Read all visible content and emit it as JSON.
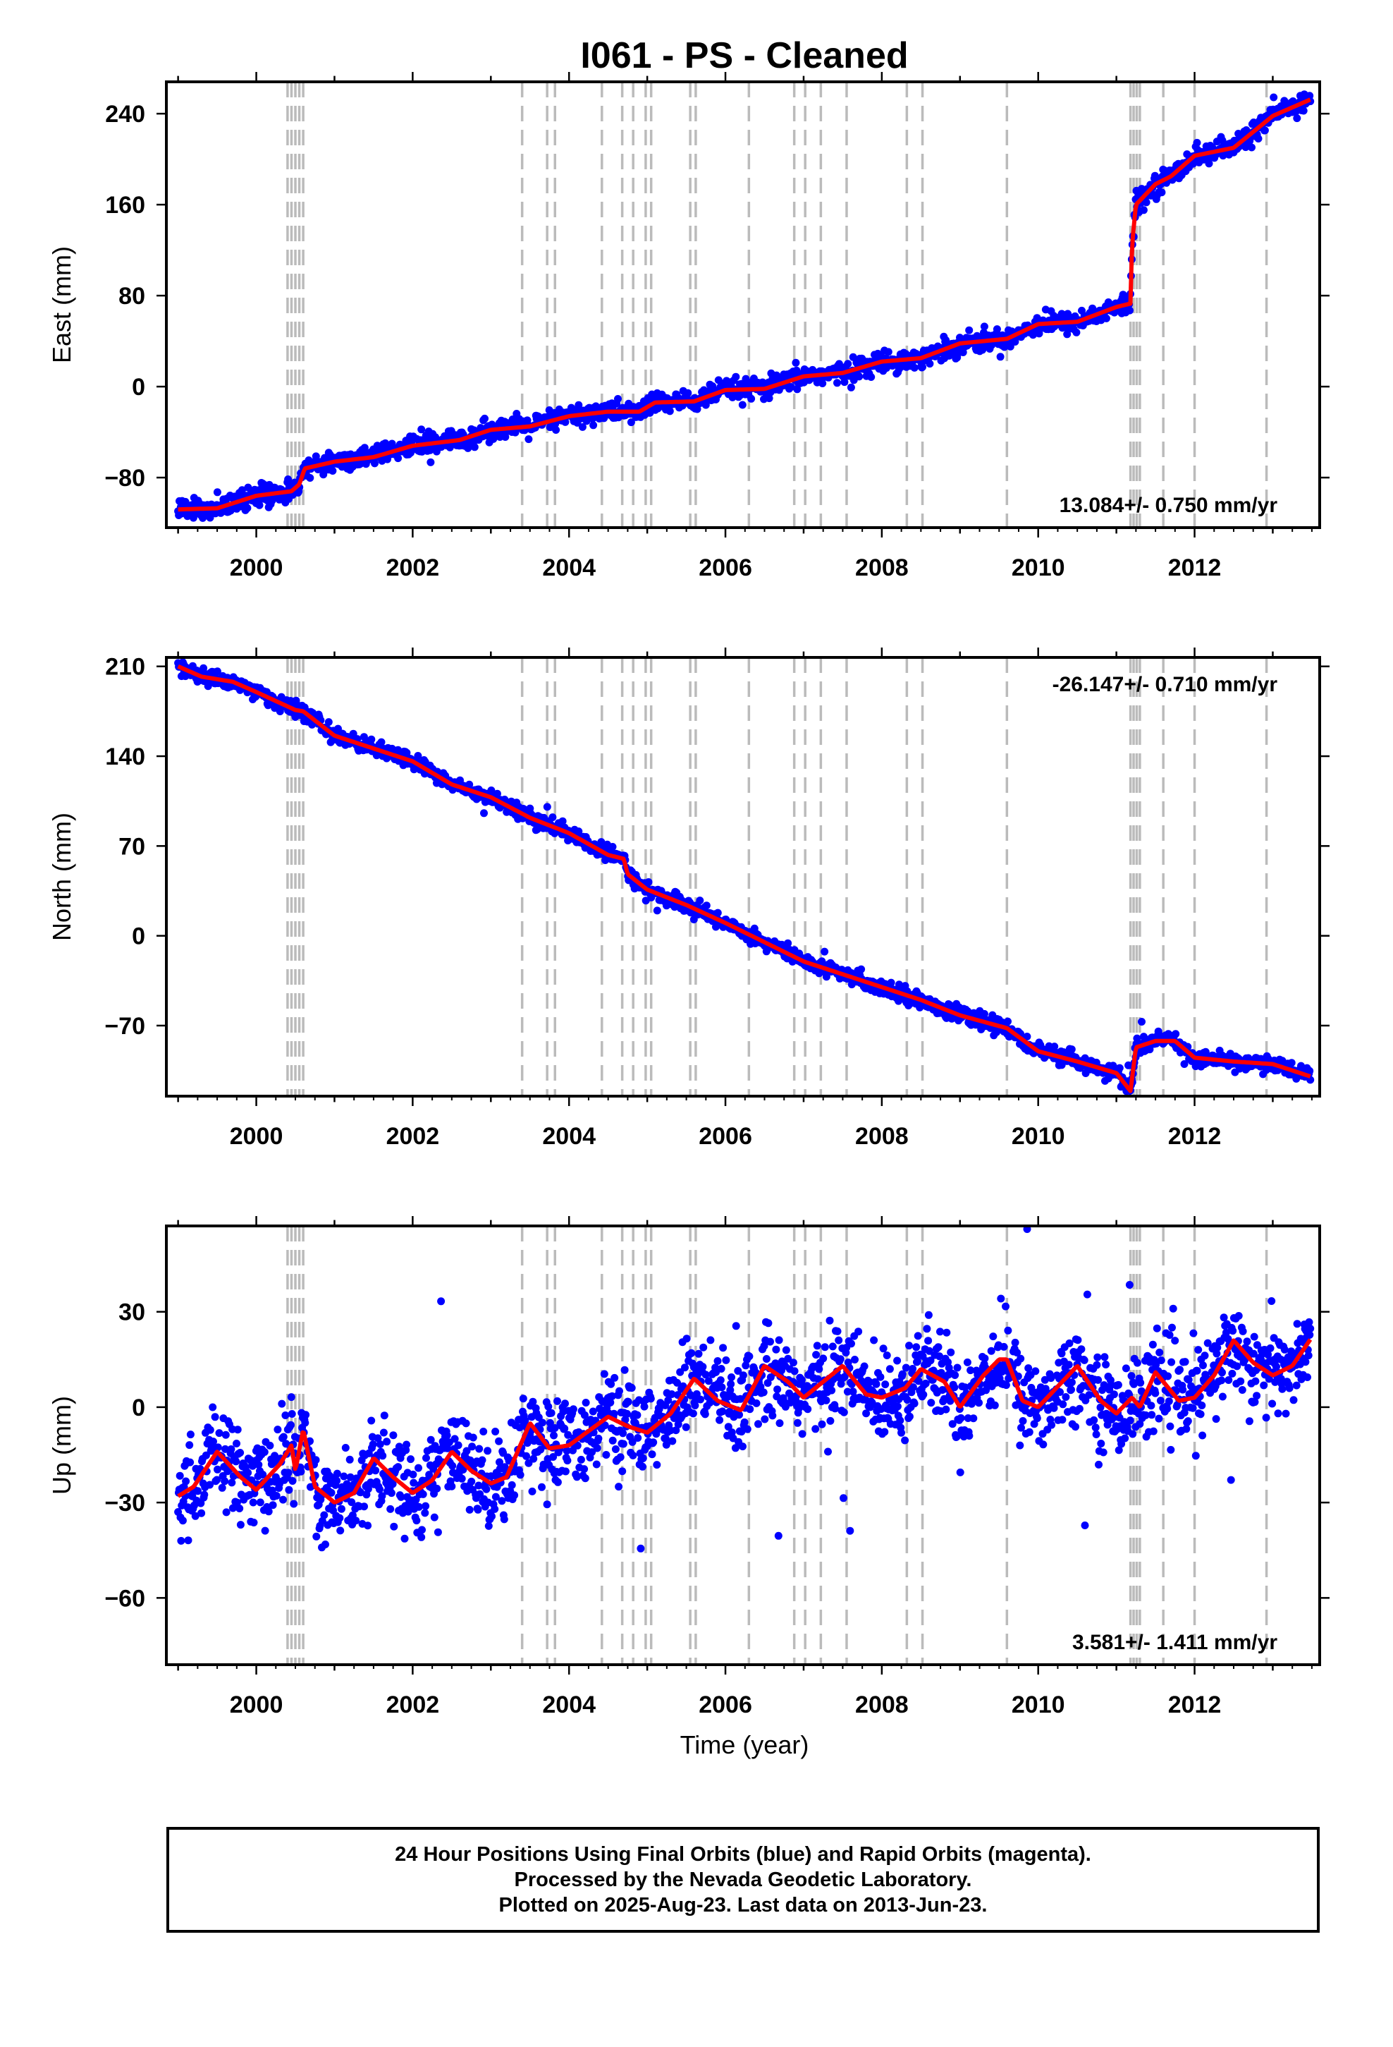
{
  "chart_data": {
    "type": "scatter",
    "title": "I061  - PS - Cleaned",
    "xlabel": "Time (year)",
    "xlim": [
      1998.85,
      2013.6
    ],
    "xticks": [
      2000,
      2002,
      2004,
      2006,
      2008,
      2010,
      2012
    ],
    "marker_color": "#0000ff",
    "model_color": "#ff0000",
    "event_line_color": "#bbbbbb",
    "event_lines": [
      2000.4,
      2000.45,
      2000.5,
      2000.55,
      2000.6,
      2003.4,
      2003.72,
      2003.82,
      2004.42,
      2004.68,
      2004.82,
      2004.98,
      2005.05,
      2005.55,
      2005.62,
      2006.3,
      2006.88,
      2007.02,
      2007.22,
      2007.55,
      2008.32,
      2008.52,
      2009.6,
      2011.18,
      2011.22,
      2011.26,
      2011.3,
      2011.6,
      2012.0,
      2012.92
    ],
    "panels": [
      {
        "ylabel": "East (mm)",
        "ylim": [
          -124,
          268
        ],
        "yticks": [
          -80,
          0,
          80,
          160,
          240
        ],
        "ytick_labels": [
          "−80",
          "0",
          "80",
          "160",
          "240"
        ],
        "rate_label": "13.084+/- 0.750 mm/yr",
        "rate_position": "bottom-right",
        "model": [
          [
            1999.0,
            -108
          ],
          [
            1999.5,
            -107
          ],
          [
            2000.0,
            -96
          ],
          [
            2000.45,
            -92
          ],
          [
            2000.55,
            -86
          ],
          [
            2000.62,
            -72
          ],
          [
            2001.0,
            -66
          ],
          [
            2001.5,
            -62
          ],
          [
            2002.0,
            -52
          ],
          [
            2002.6,
            -47
          ],
          [
            2003.0,
            -38
          ],
          [
            2003.5,
            -35
          ],
          [
            2004.0,
            -26
          ],
          [
            2004.5,
            -22
          ],
          [
            2004.9,
            -22
          ],
          [
            2005.1,
            -14
          ],
          [
            2005.6,
            -13
          ],
          [
            2006.0,
            -3
          ],
          [
            2006.5,
            -2
          ],
          [
            2007.0,
            9
          ],
          [
            2007.5,
            12
          ],
          [
            2008.0,
            22
          ],
          [
            2008.5,
            25
          ],
          [
            2009.0,
            38
          ],
          [
            2009.6,
            42
          ],
          [
            2010.0,
            55
          ],
          [
            2010.5,
            57
          ],
          [
            2011.0,
            70
          ],
          [
            2011.18,
            73
          ],
          [
            2011.2,
            125
          ],
          [
            2011.25,
            160
          ],
          [
            2011.5,
            178
          ],
          [
            2011.7,
            185
          ],
          [
            2012.0,
            203
          ],
          [
            2012.5,
            210
          ],
          [
            2013.0,
            238
          ],
          [
            2013.5,
            253
          ]
        ],
        "noise": 4.5,
        "n_points": 1700,
        "outlier_fraction": 0
      },
      {
        "ylabel": "North (mm)",
        "ylim": [
          -125,
          217
        ],
        "yticks": [
          -70,
          0,
          70,
          140,
          210
        ],
        "ytick_labels": [
          "−70",
          "0",
          "70",
          "140",
          "210"
        ],
        "rate_label": "-26.147+/- 0.710 mm/yr",
        "rate_position": "top-right",
        "model": [
          [
            1999.0,
            210
          ],
          [
            1999.3,
            202
          ],
          [
            1999.7,
            198
          ],
          [
            2000.0,
            190
          ],
          [
            2000.5,
            176
          ],
          [
            2000.6,
            175
          ],
          [
            2001.0,
            156
          ],
          [
            2001.5,
            146
          ],
          [
            2002.0,
            136
          ],
          [
            2002.5,
            118
          ],
          [
            2003.0,
            108
          ],
          [
            2003.5,
            92
          ],
          [
            2004.0,
            80
          ],
          [
            2004.5,
            63
          ],
          [
            2004.7,
            60
          ],
          [
            2004.75,
            48
          ],
          [
            2005.0,
            36
          ],
          [
            2005.5,
            24
          ],
          [
            2006.0,
            10
          ],
          [
            2006.5,
            -5
          ],
          [
            2007.0,
            -20
          ],
          [
            2007.5,
            -30
          ],
          [
            2008.0,
            -40
          ],
          [
            2008.5,
            -50
          ],
          [
            2009.0,
            -62
          ],
          [
            2009.6,
            -72
          ],
          [
            2010.0,
            -90
          ],
          [
            2010.5,
            -98
          ],
          [
            2011.0,
            -107
          ],
          [
            2011.18,
            -121
          ],
          [
            2011.25,
            -87
          ],
          [
            2011.5,
            -82
          ],
          [
            2011.75,
            -82
          ],
          [
            2012.0,
            -95
          ],
          [
            2012.5,
            -98
          ],
          [
            2013.0,
            -100
          ],
          [
            2013.5,
            -110
          ]
        ],
        "noise": 3,
        "n_points": 1700,
        "outlier_fraction": 0.003
      },
      {
        "ylabel": "Up (mm)",
        "ylim": [
          -81,
          57
        ],
        "yticks": [
          -60,
          -30,
          0,
          30
        ],
        "ytick_labels": [
          "−60",
          "−30",
          "0",
          "30"
        ],
        "rate_label": "3.581+/- 1.411 mm/yr",
        "rate_position": "bottom-right",
        "model": [
          [
            1999.0,
            -28
          ],
          [
            1999.2,
            -25
          ],
          [
            1999.5,
            -14
          ],
          [
            1999.8,
            -22
          ],
          [
            2000.0,
            -26
          ],
          [
            2000.3,
            -18
          ],
          [
            2000.45,
            -12
          ],
          [
            2000.5,
            -20
          ],
          [
            2000.6,
            -7
          ],
          [
            2000.75,
            -25
          ],
          [
            2001.0,
            -30
          ],
          [
            2001.25,
            -27
          ],
          [
            2001.5,
            -16
          ],
          [
            2001.75,
            -22
          ],
          [
            2002.0,
            -27
          ],
          [
            2002.25,
            -23
          ],
          [
            2002.5,
            -14
          ],
          [
            2002.75,
            -20
          ],
          [
            2003.0,
            -24
          ],
          [
            2003.2,
            -22
          ],
          [
            2003.5,
            -5
          ],
          [
            2003.75,
            -13
          ],
          [
            2004.0,
            -12
          ],
          [
            2004.5,
            -3
          ],
          [
            2004.75,
            -6
          ],
          [
            2005.0,
            -8
          ],
          [
            2005.3,
            -2
          ],
          [
            2005.6,
            9
          ],
          [
            2005.9,
            2
          ],
          [
            2006.2,
            -1
          ],
          [
            2006.5,
            13
          ],
          [
            2006.8,
            8
          ],
          [
            2007.0,
            3
          ],
          [
            2007.5,
            13
          ],
          [
            2007.8,
            4
          ],
          [
            2008.0,
            3
          ],
          [
            2008.3,
            6
          ],
          [
            2008.5,
            12
          ],
          [
            2008.8,
            8
          ],
          [
            2009.0,
            0
          ],
          [
            2009.3,
            10
          ],
          [
            2009.5,
            15
          ],
          [
            2009.6,
            15
          ],
          [
            2009.8,
            2
          ],
          [
            2010.0,
            0
          ],
          [
            2010.5,
            13
          ],
          [
            2010.8,
            2
          ],
          [
            2011.0,
            -2
          ],
          [
            2011.2,
            3
          ],
          [
            2011.3,
            0
          ],
          [
            2011.5,
            11
          ],
          [
            2011.8,
            2
          ],
          [
            2012.0,
            3
          ],
          [
            2012.25,
            10
          ],
          [
            2012.5,
            21
          ],
          [
            2012.75,
            14
          ],
          [
            2013.0,
            10
          ],
          [
            2013.25,
            13
          ],
          [
            2013.5,
            22
          ]
        ],
        "noise": 7,
        "n_points": 1900,
        "outlier_fraction": 0.01
      }
    ],
    "footer_lines": [
      "24 Hour Positions Using Final Orbits (blue) and Rapid Orbits (magenta).",
      "Processed by the Nevada Geodetic Laboratory.",
      "Plotted on 2025-Aug-23. Last data on 2013-Jun-23."
    ]
  }
}
